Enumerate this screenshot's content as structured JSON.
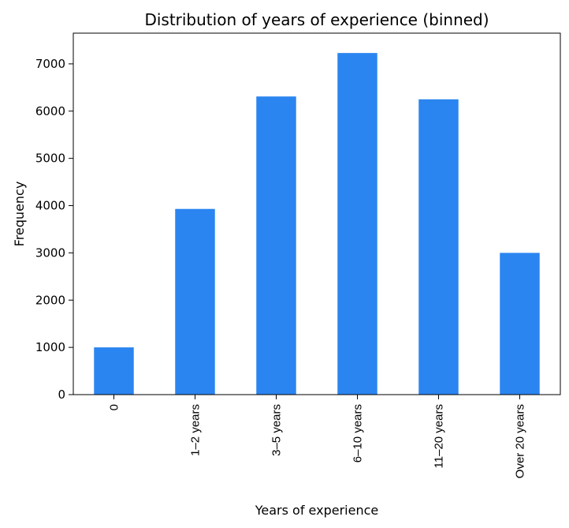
{
  "chart_data": {
    "type": "bar",
    "title": "Distribution of years of experience (binned)",
    "xlabel": "Years of experience",
    "ylabel": "Frequency",
    "categories": [
      "0",
      "1–2 years",
      "3–5 years",
      "6–10 years",
      "11–20 years",
      "Over 20 years"
    ],
    "values": [
      1000,
      3930,
      6310,
      7230,
      6250,
      3000
    ],
    "ylim": [
      0,
      7650
    ],
    "yticks": [
      "0",
      "1000",
      "2000",
      "3000",
      "4000",
      "5000",
      "6000",
      "7000"
    ],
    "bar_color": "#2b85f0",
    "grid": false,
    "legend": "none"
  }
}
